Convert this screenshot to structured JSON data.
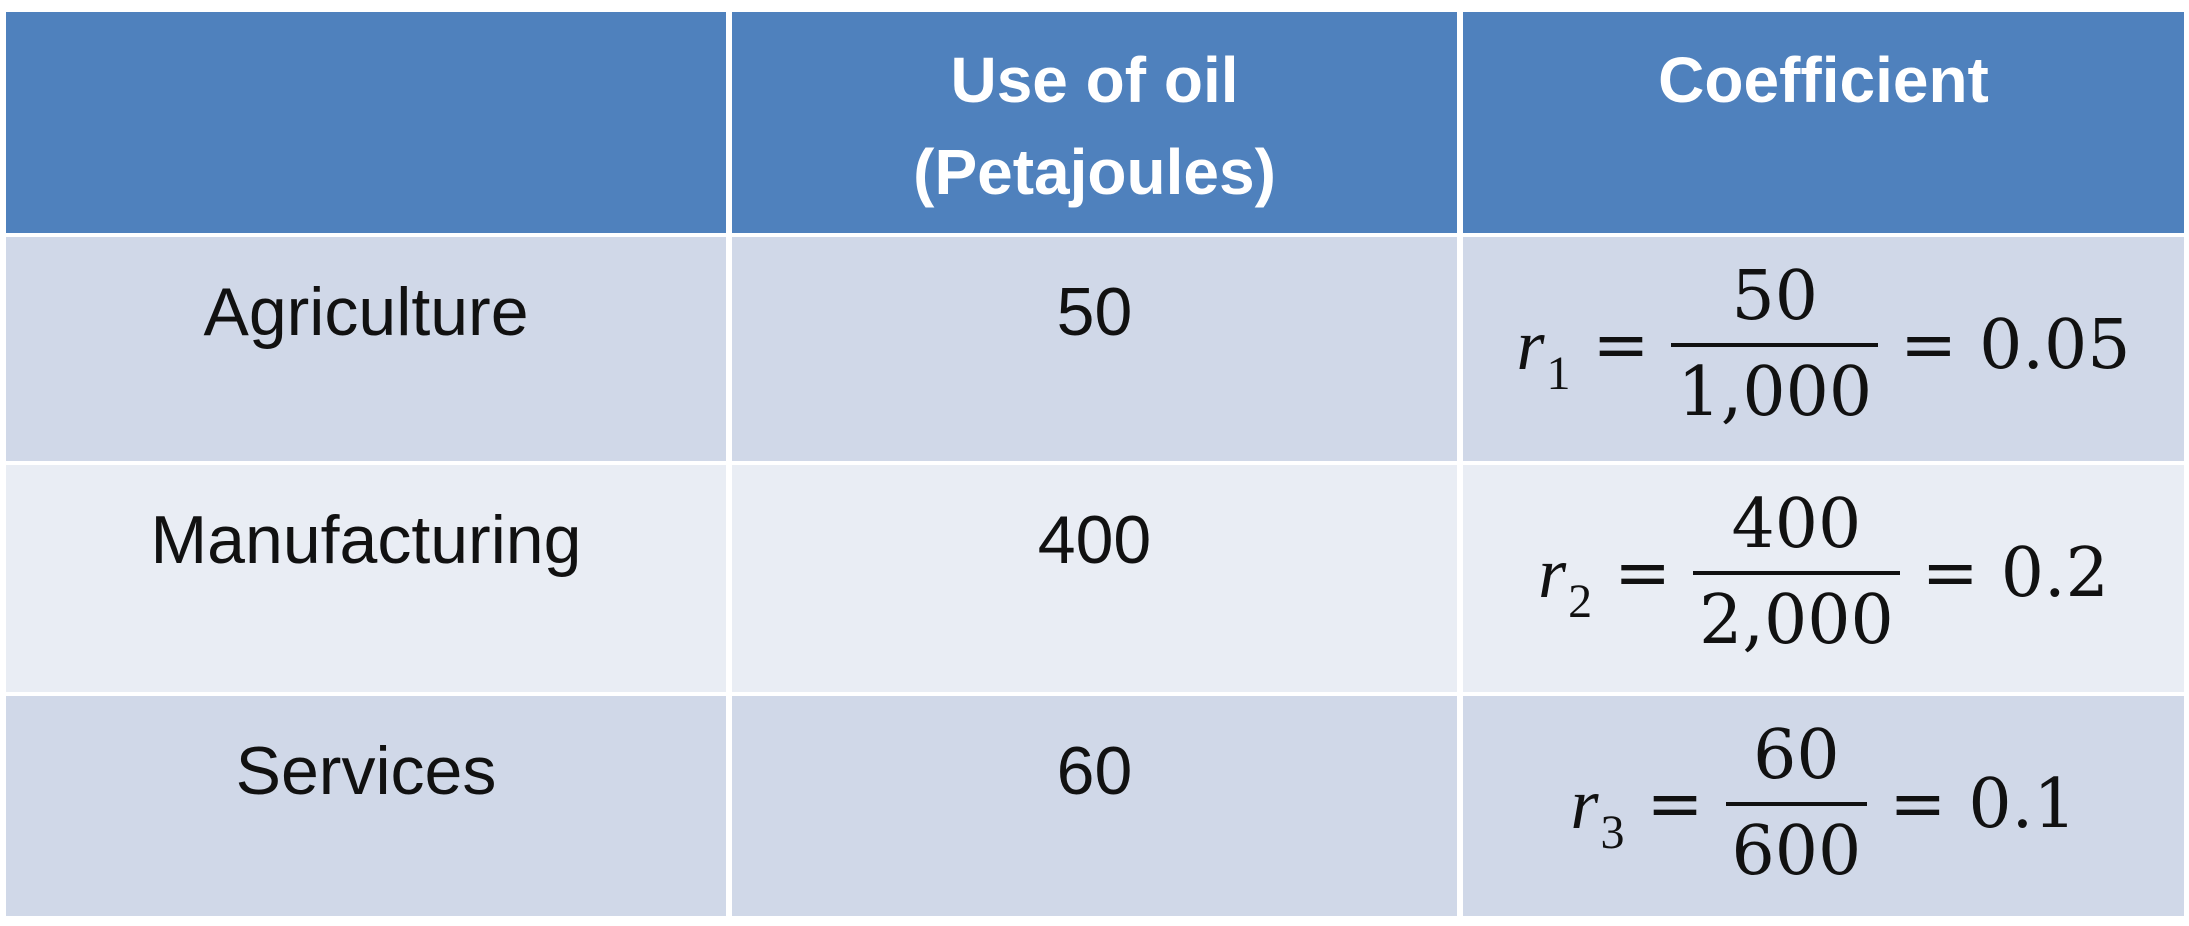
{
  "table": {
    "headers": [
      "",
      "Use of oil\n(Petajoules)",
      "Coefficient"
    ],
    "header_col2_line1": "Use of oil",
    "header_col2_line2": "(Petajoules)",
    "header_col3": "Coefficient",
    "rows": [
      {
        "sector": "Agriculture",
        "use_of_oil": "50",
        "coefficient": {
          "var": "r",
          "sub": "1",
          "numerator": "50",
          "denominator": "1,000",
          "result": "0.05"
        }
      },
      {
        "sector": "Manufacturing",
        "use_of_oil": "400",
        "coefficient": {
          "var": "r",
          "sub": "2",
          "numerator": "400",
          "denominator": "2,000",
          "result": "0.2"
        }
      },
      {
        "sector": "Services",
        "use_of_oil": "60",
        "coefficient": {
          "var": "r",
          "sub": "3",
          "numerator": "60",
          "denominator": "600",
          "result": "0.1"
        }
      }
    ],
    "equals": "="
  },
  "colors": {
    "header_bg": "#4f81bd",
    "row_dark": "#d0d8e8",
    "row_light": "#e9edf4",
    "header_text": "#ffffff"
  }
}
